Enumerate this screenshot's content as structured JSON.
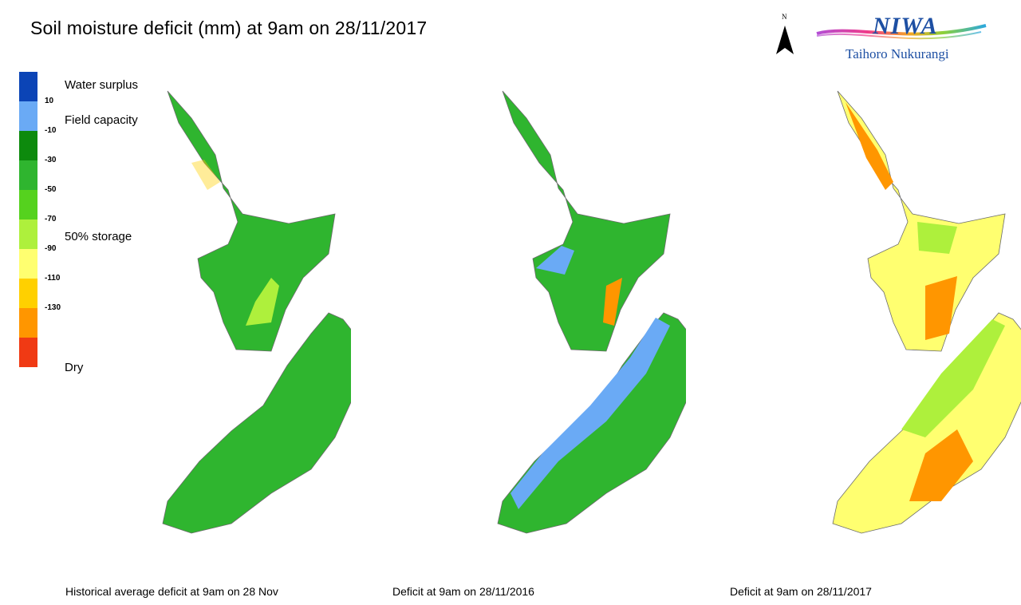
{
  "title": "Soil moisture deficit (mm) at 9am on 28/11/2017",
  "north_label": "N",
  "logo": {
    "wordmark": "NIWA",
    "tagline": "Taihoro Nukurangi"
  },
  "legend": {
    "swatches": [
      {
        "color": "#0b44b6"
      },
      {
        "color": "#6aaaf5"
      },
      {
        "color": "#0d8a0d"
      },
      {
        "color": "#2fb52f"
      },
      {
        "color": "#55d21e"
      },
      {
        "color": "#aef03c"
      },
      {
        "color": "#ffff70"
      },
      {
        "color": "#ffd000"
      },
      {
        "color": "#ff9600"
      },
      {
        "color": "#f03a14"
      }
    ],
    "ticks": [
      "10",
      "-10",
      "-30",
      "-50",
      "-70",
      "-90",
      "-110",
      "-130"
    ],
    "categories": {
      "surplus": "Water surplus",
      "field_capacity": "Field capacity",
      "storage": "50% storage",
      "dry": "Dry"
    }
  },
  "panels": [
    {
      "caption": "Historical average deficit at  9am on 28 Nov",
      "fill": "#2fb52f",
      "accent": "#aef03c",
      "hot": "#ffd000"
    },
    {
      "caption": "Deficit at  9am on 28/11/2016",
      "fill": "#2fb52f",
      "accent": "#6aaaf5",
      "hot": "#ff9600"
    },
    {
      "caption": "Deficit at  9am on 28/11/2017",
      "fill": "#ffff70",
      "accent": "#aef03c",
      "hot": "#ff9600"
    }
  ]
}
